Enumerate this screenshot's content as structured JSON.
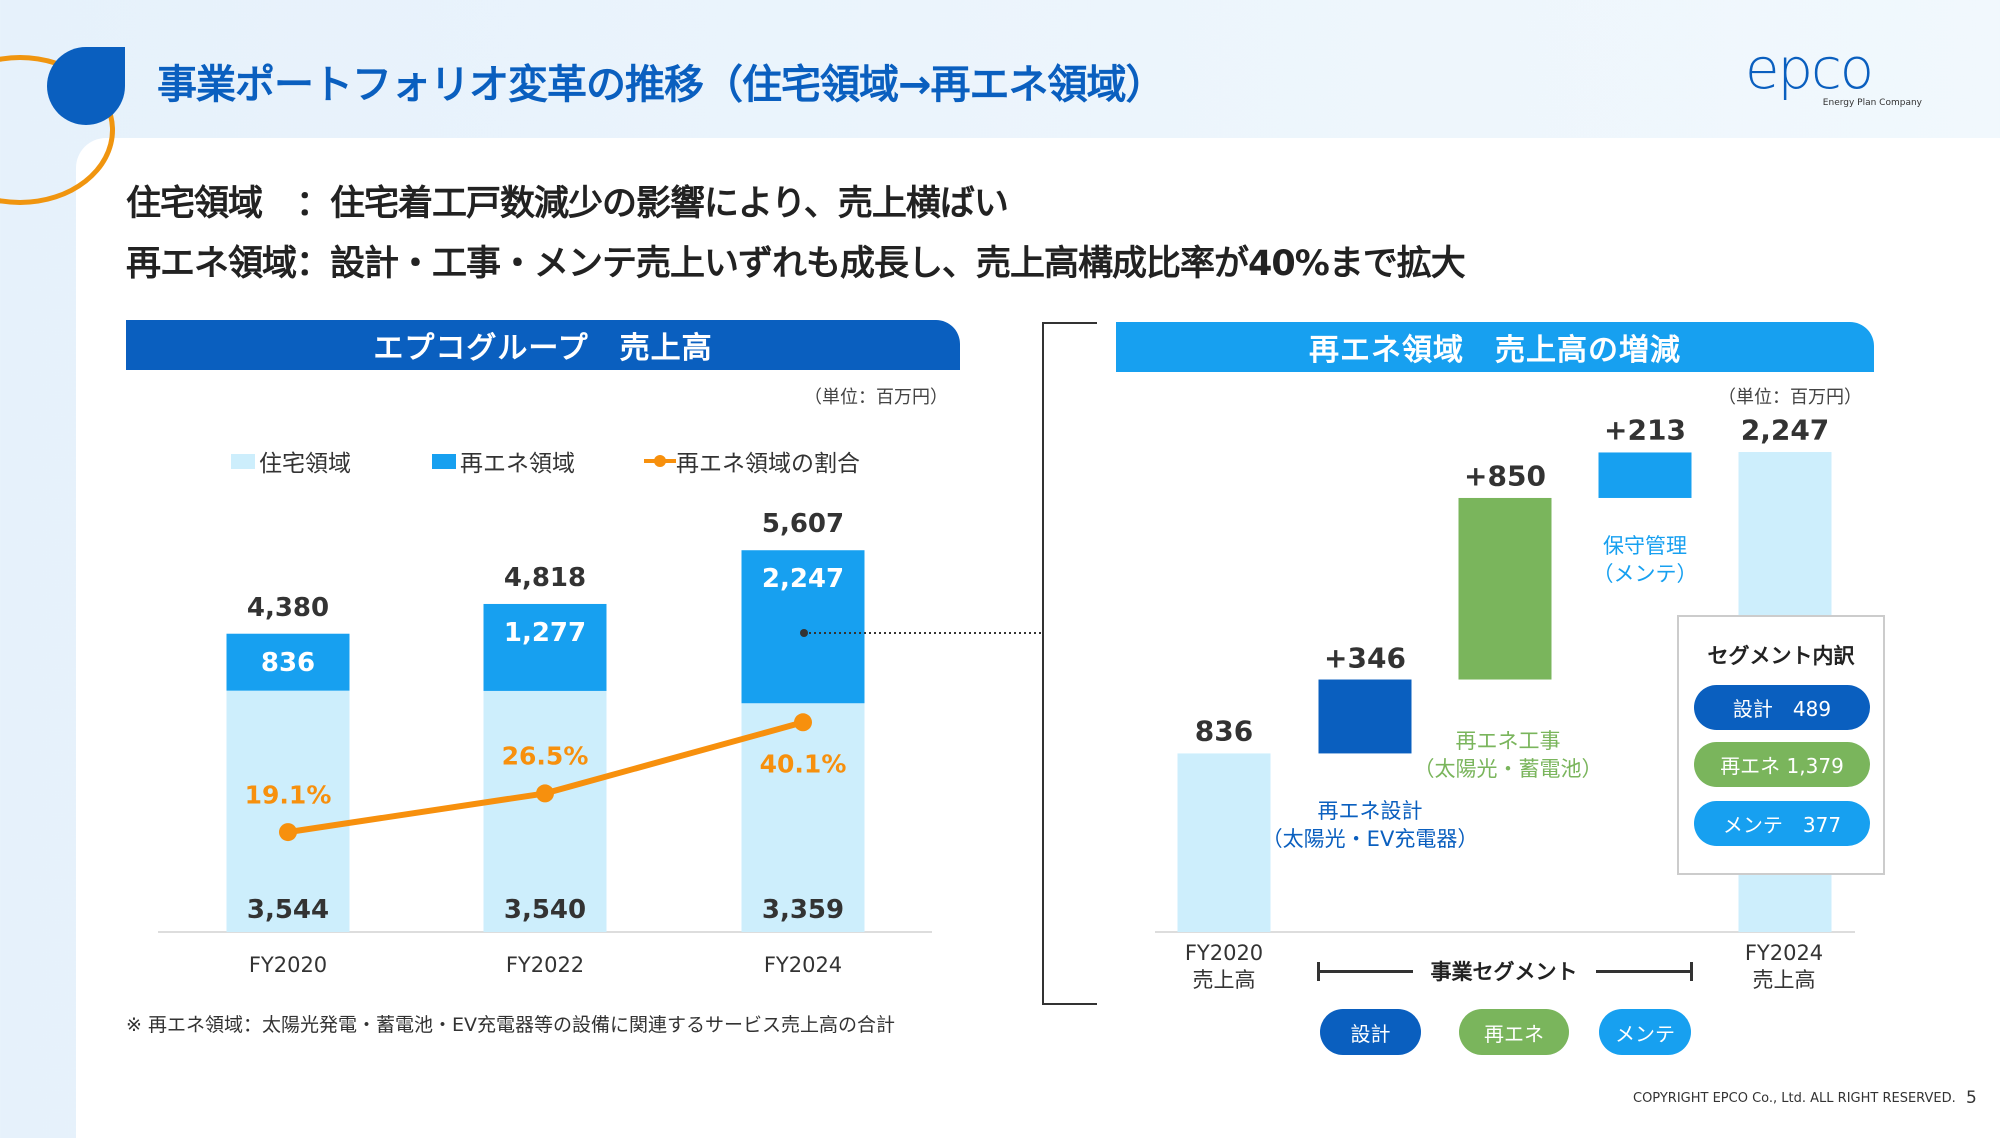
{
  "header": {
    "title": "事業ポートフォリオ変革の推移（住宅領域→再エネ領域）",
    "logo_text": "epco",
    "logo_sub": "Energy Plan Company"
  },
  "summary": [
    "住宅領域　：住宅着工戸数減少の影響により、売上横ばい",
    "再エネ領域：設計・工事・メンテ売上いずれも成長し、売上高構成比率が40%まで拡大"
  ],
  "colors": {
    "dark_blue": "#0a5fbf",
    "mid_blue": "#17a0f0",
    "light_blue": "#cdeefc",
    "green": "#7ab55c",
    "orange": "#f7900d"
  },
  "left_panel": {
    "title": "エプコグループ　売上高",
    "unit": "（単位：百万円）",
    "footnote": "※ 再エネ領域：太陽光発電・蓄電池・EV充電器等の設備に関連するサービス売上高の合計"
  },
  "right_panel": {
    "title": "再エネ領域　売上高の増減",
    "unit": "（単位：百万円）",
    "segment_axis_label": "事業セグメント",
    "segment_pills": [
      "設計",
      "再エネ",
      "メンテ"
    ],
    "breakdown": {
      "title": "セグメント内訳",
      "items": [
        {
          "label": "設計　489"
        },
        {
          "label": "再エネ 1,379"
        },
        {
          "label": "メンテ　377"
        }
      ]
    }
  },
  "chart_data": [
    {
      "type": "bar",
      "stacked": true,
      "categories": [
        "FY2020",
        "FY2022",
        "FY2024"
      ],
      "series": [
        {
          "name": "住宅領域",
          "values": [
            3544,
            3540,
            3359
          ],
          "labels": [
            "3,544",
            "3,540",
            "3,359"
          ]
        },
        {
          "name": "再エネ領域",
          "values": [
            836,
            1277,
            2247
          ],
          "labels": [
            "836",
            "1,277",
            "2,247"
          ]
        },
        {
          "name": "再エネ領域の割合",
          "type": "line",
          "values": [
            19.1,
            26.5,
            40.1
          ],
          "labels": [
            "19.1%",
            "26.5%",
            "40.1%"
          ]
        }
      ],
      "totals": [
        "4,380",
        "4,818",
        "5,607"
      ],
      "legend": "top"
    },
    {
      "type": "waterfall",
      "categories": [
        "FY2020\n売上高",
        "再エネ設計\n（太陽光・EV充電器）",
        "再エネ工事\n（太陽光・蓄電池）",
        "保守管理\n（メンテ）",
        "FY2024\n売上高"
      ],
      "values": [
        836,
        346,
        850,
        213,
        2247
      ],
      "labels": [
        "836",
        "+346",
        "+850",
        "+213",
        "2,247"
      ]
    }
  ],
  "footer": {
    "copyright": "COPYRIGHT EPCO Co., Ltd. ALL RIGHT RESERVED.",
    "page": "5"
  }
}
